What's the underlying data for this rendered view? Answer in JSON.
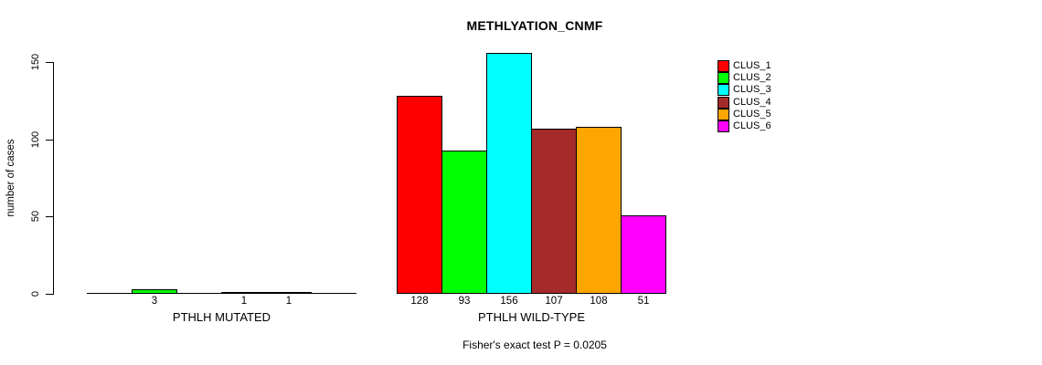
{
  "chart_data": {
    "type": "bar",
    "title": "METHLYATION_CNMF",
    "ylabel": "number of cases",
    "xlabel": "",
    "ylim": [
      0,
      150
    ],
    "yticks": [
      0,
      50,
      100,
      150
    ],
    "grid": false,
    "legend_position": "right-top",
    "value_labels_under_bars": true,
    "zero_values_unlabeled": true,
    "clusters": [
      {
        "name": "CLUS_1",
        "color": "#FF0000"
      },
      {
        "name": "CLUS_2",
        "color": "#00FF00"
      },
      {
        "name": "CLUS_3",
        "color": "#00FFFF"
      },
      {
        "name": "CLUS_4",
        "color": "#A52A2A"
      },
      {
        "name": "CLUS_5",
        "color": "#FFA500"
      },
      {
        "name": "CLUS_6",
        "color": "#FF00FF"
      }
    ],
    "groups": [
      {
        "label": "PTHLH MUTATED",
        "values": [
          0,
          3,
          0,
          1,
          1,
          0
        ]
      },
      {
        "label": "PTHLH WILD-TYPE",
        "values": [
          128,
          93,
          156,
          107,
          108,
          51
        ]
      }
    ],
    "annotation": "Fisher's exact test P = 0.0205"
  }
}
